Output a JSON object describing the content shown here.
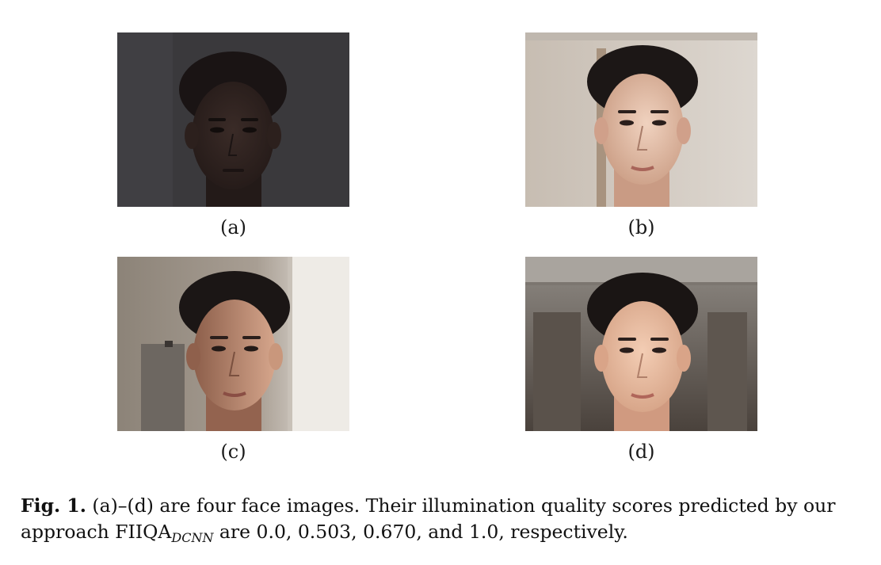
{
  "figure": {
    "panels": [
      {
        "id": "a",
        "label": "(a)",
        "score": 0.0
      },
      {
        "id": "b",
        "label": "(b)",
        "score": 0.503
      },
      {
        "id": "c",
        "label": "(c)",
        "score": 0.67
      },
      {
        "id": "d",
        "label": "(d)",
        "score": 1.0
      }
    ],
    "caption": {
      "label": "Fig. 1.",
      "text_part1": " (a)–(d) are four face images. Their illumination quality scores predicted by our approach FIIQA",
      "subscript": "DCNN",
      "text_part2": " are 0.0, 0.503, 0.670, and 1.0, respectively."
    }
  }
}
